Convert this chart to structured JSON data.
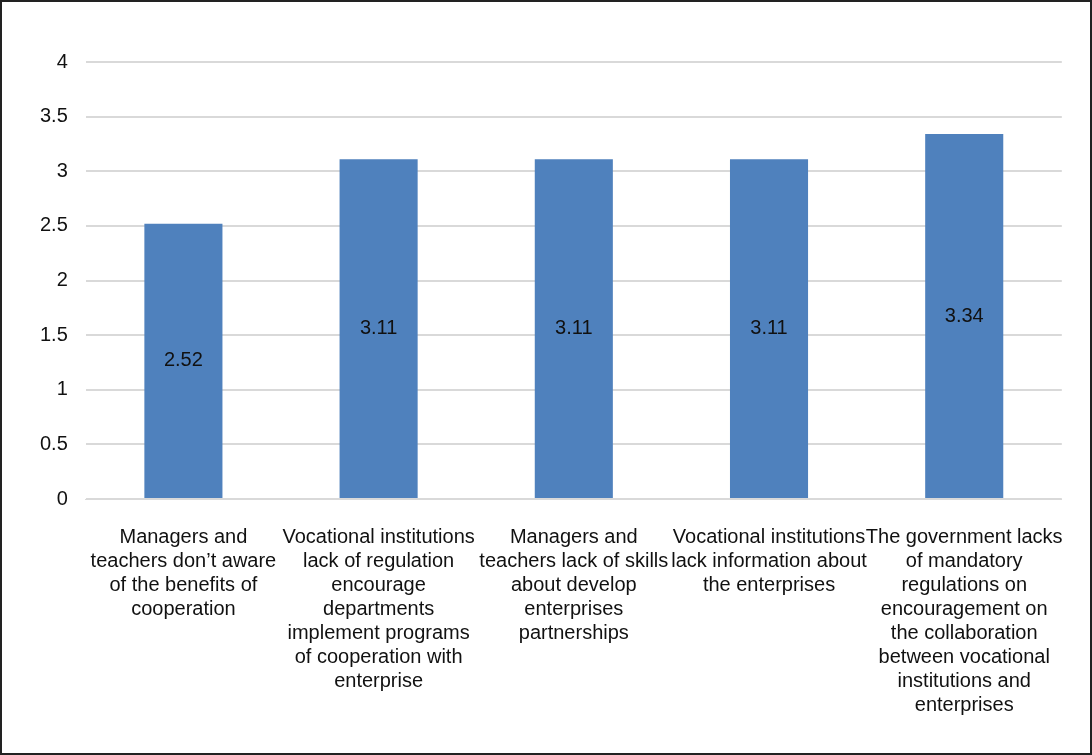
{
  "chart_data": {
    "type": "bar",
    "categories": [
      "Managers and teachers don’t aware of the benefits of cooperation",
      "Vocational institutions lack of regulation encourage departments implement programs of cooperation with enterprise",
      "Managers and teachers lack of skills about develop enterprises partnerships",
      "Vocational institutions lack information about the enterprises",
      "The government lacks of mandatory regulations on encouragement on the collaboration between vocational institutions and enterprises"
    ],
    "values": [
      2.52,
      3.11,
      3.11,
      3.11,
      3.34
    ],
    "color": "#4f81bd",
    "ylim": [
      0,
      4
    ],
    "yticks": [
      0,
      0.5,
      1,
      1.5,
      2,
      2.5,
      3,
      3.5,
      4
    ],
    "grid": "y",
    "data_labels": true,
    "legend": false
  }
}
